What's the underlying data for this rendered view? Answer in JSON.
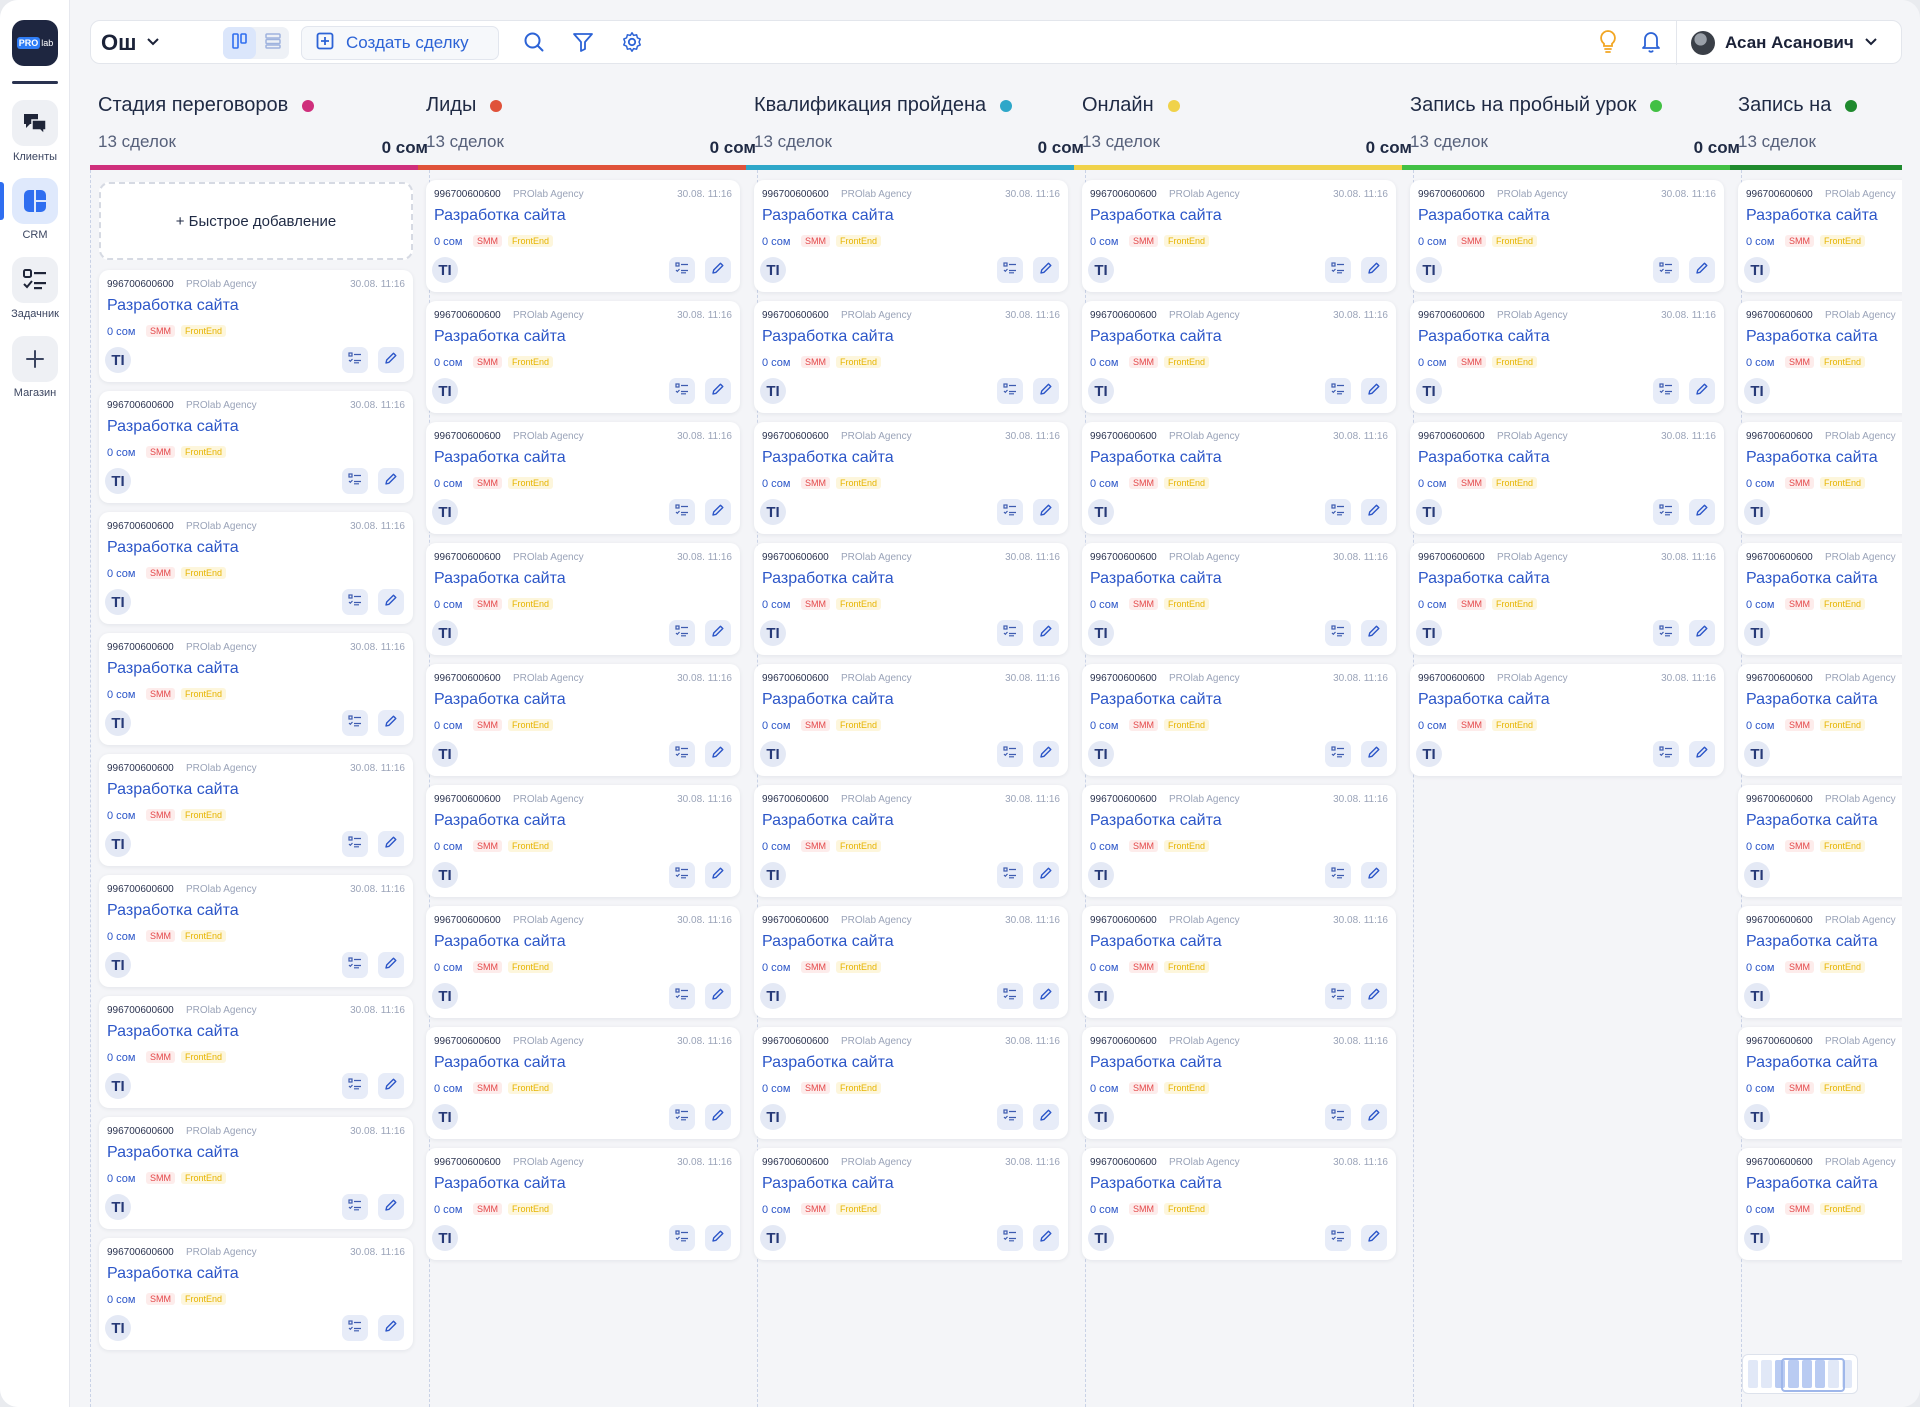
{
  "sidebar": {
    "logo": {
      "pro": "PRO",
      "lab": "lab"
    },
    "items": [
      {
        "label": "Клиенты",
        "icon": "chat-icon"
      },
      {
        "label": "CRM",
        "icon": "crm-board-icon",
        "active": true
      },
      {
        "label": "Задачник",
        "icon": "task-list-icon"
      },
      {
        "label": "Магазин",
        "icon": "plus-icon"
      }
    ]
  },
  "topbar": {
    "city": "Ош",
    "create_label": "Создать сделку",
    "user_name": "Асан Асанович"
  },
  "quick_add_label": "+ Быстрое добавление",
  "card": {
    "phone": "996700600600",
    "company": "PROlab Agency",
    "date": "30.08. 11:16",
    "title": "Разработка сайта",
    "sum": "0 сом",
    "tag_smm": "SMM",
    "tag_frontend": "FrontEnd",
    "avatar": "TI"
  },
  "columns": [
    {
      "title": "Стадия переговоров",
      "count": "13 сделок",
      "sum": "0 сом",
      "color": "#cf2f7c",
      "cards": 9,
      "quick_add": true
    },
    {
      "title": "Лиды",
      "count": "13 сделок",
      "sum": "0 сом",
      "color": "#e0523a",
      "cards": 9
    },
    {
      "title": "Квалификация пройдена",
      "count": "13 сделок",
      "sum": "0 сом",
      "color": "#2ea7c9",
      "cards": 9
    },
    {
      "title": "Онлайн",
      "count": "13 сделок",
      "sum": "0 сом",
      "color": "#f0d24a",
      "cards": 9
    },
    {
      "title": "Запись на пробный урок",
      "count": "13 сделок",
      "sum": "0 сом",
      "color": "#42c044",
      "cards": 5
    },
    {
      "title": "Запись на",
      "count": "13 сделок",
      "sum": "",
      "color": "#1f8a2e",
      "cards": 9
    }
  ]
}
